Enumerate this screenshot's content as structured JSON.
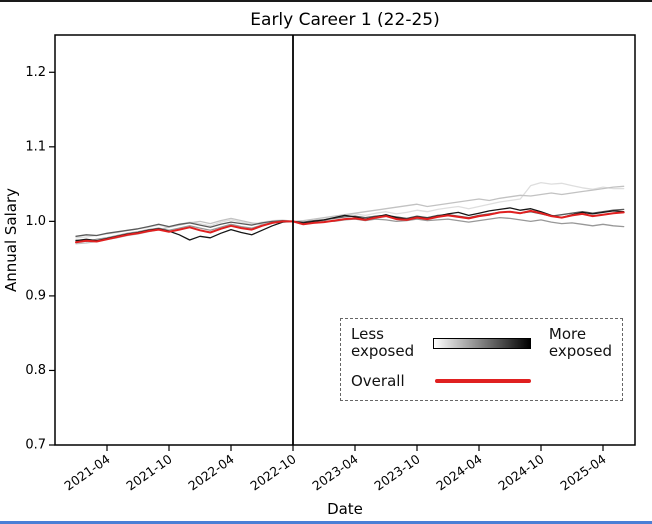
{
  "window": {
    "top_border_color": "#1a1a1a",
    "bottom_strip_color": "#4a7fd6"
  },
  "legend": {
    "less_label": "Less\nexposed",
    "more_label": "More\nexposed",
    "overall_label": "Overall",
    "gradient": [
      "#ffffff",
      "#000000"
    ],
    "overall_color": "#e02020",
    "border_style": "dashed"
  },
  "chart_data": {
    "type": "line",
    "title": "Early Career 1 (22-25)",
    "xlabel": "Date",
    "ylabel": "Annual Salary",
    "ylim": [
      0.7,
      1.25
    ],
    "yticks": [
      0.7,
      0.8,
      0.9,
      1.0,
      1.1,
      1.2
    ],
    "xticks": [
      "2021-04",
      "2021-10",
      "2022-04",
      "2022-10",
      "2023-04",
      "2023-10",
      "2024-04",
      "2024-10",
      "2025-04"
    ],
    "xtick_rotation": -35,
    "vline_x": "2022-10",
    "vline_color": "#000000",
    "grid": false,
    "legend_position": "lower-right",
    "x": [
      "2021-01",
      "2021-02",
      "2021-03",
      "2021-04",
      "2021-05",
      "2021-06",
      "2021-07",
      "2021-08",
      "2021-09",
      "2021-10",
      "2021-11",
      "2021-12",
      "2022-01",
      "2022-02",
      "2022-03",
      "2022-04",
      "2022-05",
      "2022-06",
      "2022-07",
      "2022-08",
      "2022-09",
      "2022-10",
      "2022-11",
      "2022-12",
      "2023-01",
      "2023-02",
      "2023-03",
      "2023-04",
      "2023-05",
      "2023-06",
      "2023-07",
      "2023-08",
      "2023-09",
      "2023-10",
      "2023-11",
      "2023-12",
      "2024-01",
      "2024-02",
      "2024-03",
      "2024-04",
      "2024-05",
      "2024-06",
      "2024-07",
      "2024-08",
      "2024-09",
      "2024-10",
      "2024-11",
      "2024-12",
      "2025-01",
      "2025-02",
      "2025-03",
      "2025-04",
      "2025-05",
      "2025-06"
    ],
    "series": [
      {
        "name": "exposure-quintile-1-least-exposed",
        "color": "#dedede",
        "width": 1.3,
        "values": [
          0.978,
          0.979,
          0.981,
          0.983,
          0.985,
          0.988,
          0.99,
          0.992,
          0.995,
          0.992,
          0.996,
          0.999,
          0.997,
          0.994,
          0.999,
          1.002,
          0.999,
          0.996,
          0.999,
          1.001,
          1.002,
          1.0,
          0.999,
          1.001,
          1.003,
          1.005,
          1.008,
          1.01,
          1.008,
          1.011,
          1.013,
          1.01,
          1.012,
          1.015,
          1.013,
          1.016,
          1.018,
          1.02,
          1.017,
          1.02,
          1.023,
          1.026,
          1.028,
          1.03,
          1.048,
          1.052,
          1.05,
          1.051,
          1.048,
          1.045,
          1.043,
          1.046,
          1.044,
          1.044
        ]
      },
      {
        "name": "exposure-quintile-2",
        "color": "#c2c2c2",
        "width": 1.3,
        "values": [
          0.97,
          0.971,
          0.973,
          0.976,
          0.978,
          0.981,
          0.983,
          0.986,
          0.989,
          0.992,
          0.995,
          0.998,
          1.0,
          0.997,
          1.001,
          1.004,
          1.001,
          0.998,
          0.996,
          0.999,
          1.001,
          1.0,
          1.001,
          1.003,
          1.005,
          1.007,
          1.009,
          1.011,
          1.013,
          1.015,
          1.017,
          1.019,
          1.021,
          1.023,
          1.02,
          1.022,
          1.024,
          1.026,
          1.028,
          1.03,
          1.028,
          1.031,
          1.033,
          1.035,
          1.034,
          1.036,
          1.038,
          1.036,
          1.038,
          1.04,
          1.042,
          1.044,
          1.046,
          1.047
        ]
      },
      {
        "name": "exposure-quintile-3",
        "color": "#989898",
        "width": 1.3,
        "values": [
          0.975,
          0.973,
          0.976,
          0.978,
          0.981,
          0.984,
          0.986,
          0.989,
          0.991,
          0.988,
          0.991,
          0.994,
          0.991,
          0.988,
          0.992,
          0.996,
          0.993,
          0.991,
          0.995,
          0.998,
          1.0,
          1.0,
          0.998,
          0.999,
          1.001,
          1.0,
          1.002,
          1.003,
          1.001,
          1.003,
          1.002,
          1.0,
          1.001,
          1.003,
          1.001,
          1.002,
          1.003,
          1.001,
          0.999,
          1.001,
          1.003,
          1.005,
          1.004,
          1.002,
          1.0,
          1.002,
          0.999,
          0.997,
          0.998,
          0.996,
          0.994,
          0.996,
          0.994,
          0.993
        ]
      },
      {
        "name": "exposure-quintile-4",
        "color": "#5a5a5a",
        "width": 1.3,
        "values": [
          0.98,
          0.982,
          0.981,
          0.984,
          0.986,
          0.988,
          0.99,
          0.993,
          0.996,
          0.993,
          0.996,
          0.998,
          0.995,
          0.992,
          0.996,
          0.999,
          0.997,
          0.995,
          0.998,
          1.0,
          1.001,
          1.0,
          0.999,
          1.001,
          1.002,
          1.004,
          1.006,
          1.007,
          1.005,
          1.007,
          1.008,
          1.006,
          1.004,
          1.007,
          1.005,
          1.008,
          1.009,
          1.007,
          1.005,
          1.008,
          1.01,
          1.012,
          1.013,
          1.011,
          1.013,
          1.01,
          1.007,
          1.009,
          1.011,
          1.013,
          1.011,
          1.013,
          1.015,
          1.016
        ]
      },
      {
        "name": "exposure-quintile-5-most-exposed",
        "color": "#151515",
        "width": 1.3,
        "values": [
          0.974,
          0.976,
          0.974,
          0.977,
          0.98,
          0.983,
          0.985,
          0.988,
          0.99,
          0.987,
          0.982,
          0.975,
          0.98,
          0.978,
          0.984,
          0.989,
          0.985,
          0.982,
          0.988,
          0.994,
          0.999,
          1.0,
          0.998,
          1.0,
          1.002,
          1.005,
          1.008,
          1.006,
          1.003,
          1.006,
          1.009,
          1.005,
          1.003,
          1.006,
          1.004,
          1.007,
          1.01,
          1.012,
          1.008,
          1.011,
          1.014,
          1.016,
          1.018,
          1.015,
          1.017,
          1.013,
          1.008,
          1.005,
          1.009,
          1.012,
          1.01,
          1.012,
          1.014,
          1.013
        ]
      },
      {
        "name": "overall",
        "color": "#e02020",
        "width": 2.0,
        "values": [
          0.972,
          0.974,
          0.973,
          0.976,
          0.979,
          0.982,
          0.984,
          0.987,
          0.989,
          0.986,
          0.989,
          0.992,
          0.988,
          0.985,
          0.99,
          0.994,
          0.991,
          0.989,
          0.994,
          0.998,
          1.0,
          1.0,
          0.996,
          0.998,
          0.999,
          1.001,
          1.003,
          1.004,
          1.002,
          1.005,
          1.007,
          1.003,
          1.002,
          1.005,
          1.003,
          1.006,
          1.008,
          1.006,
          1.004,
          1.007,
          1.009,
          1.012,
          1.013,
          1.011,
          1.014,
          1.011,
          1.007,
          1.005,
          1.008,
          1.01,
          1.007,
          1.009,
          1.011,
          1.012
        ]
      }
    ]
  }
}
